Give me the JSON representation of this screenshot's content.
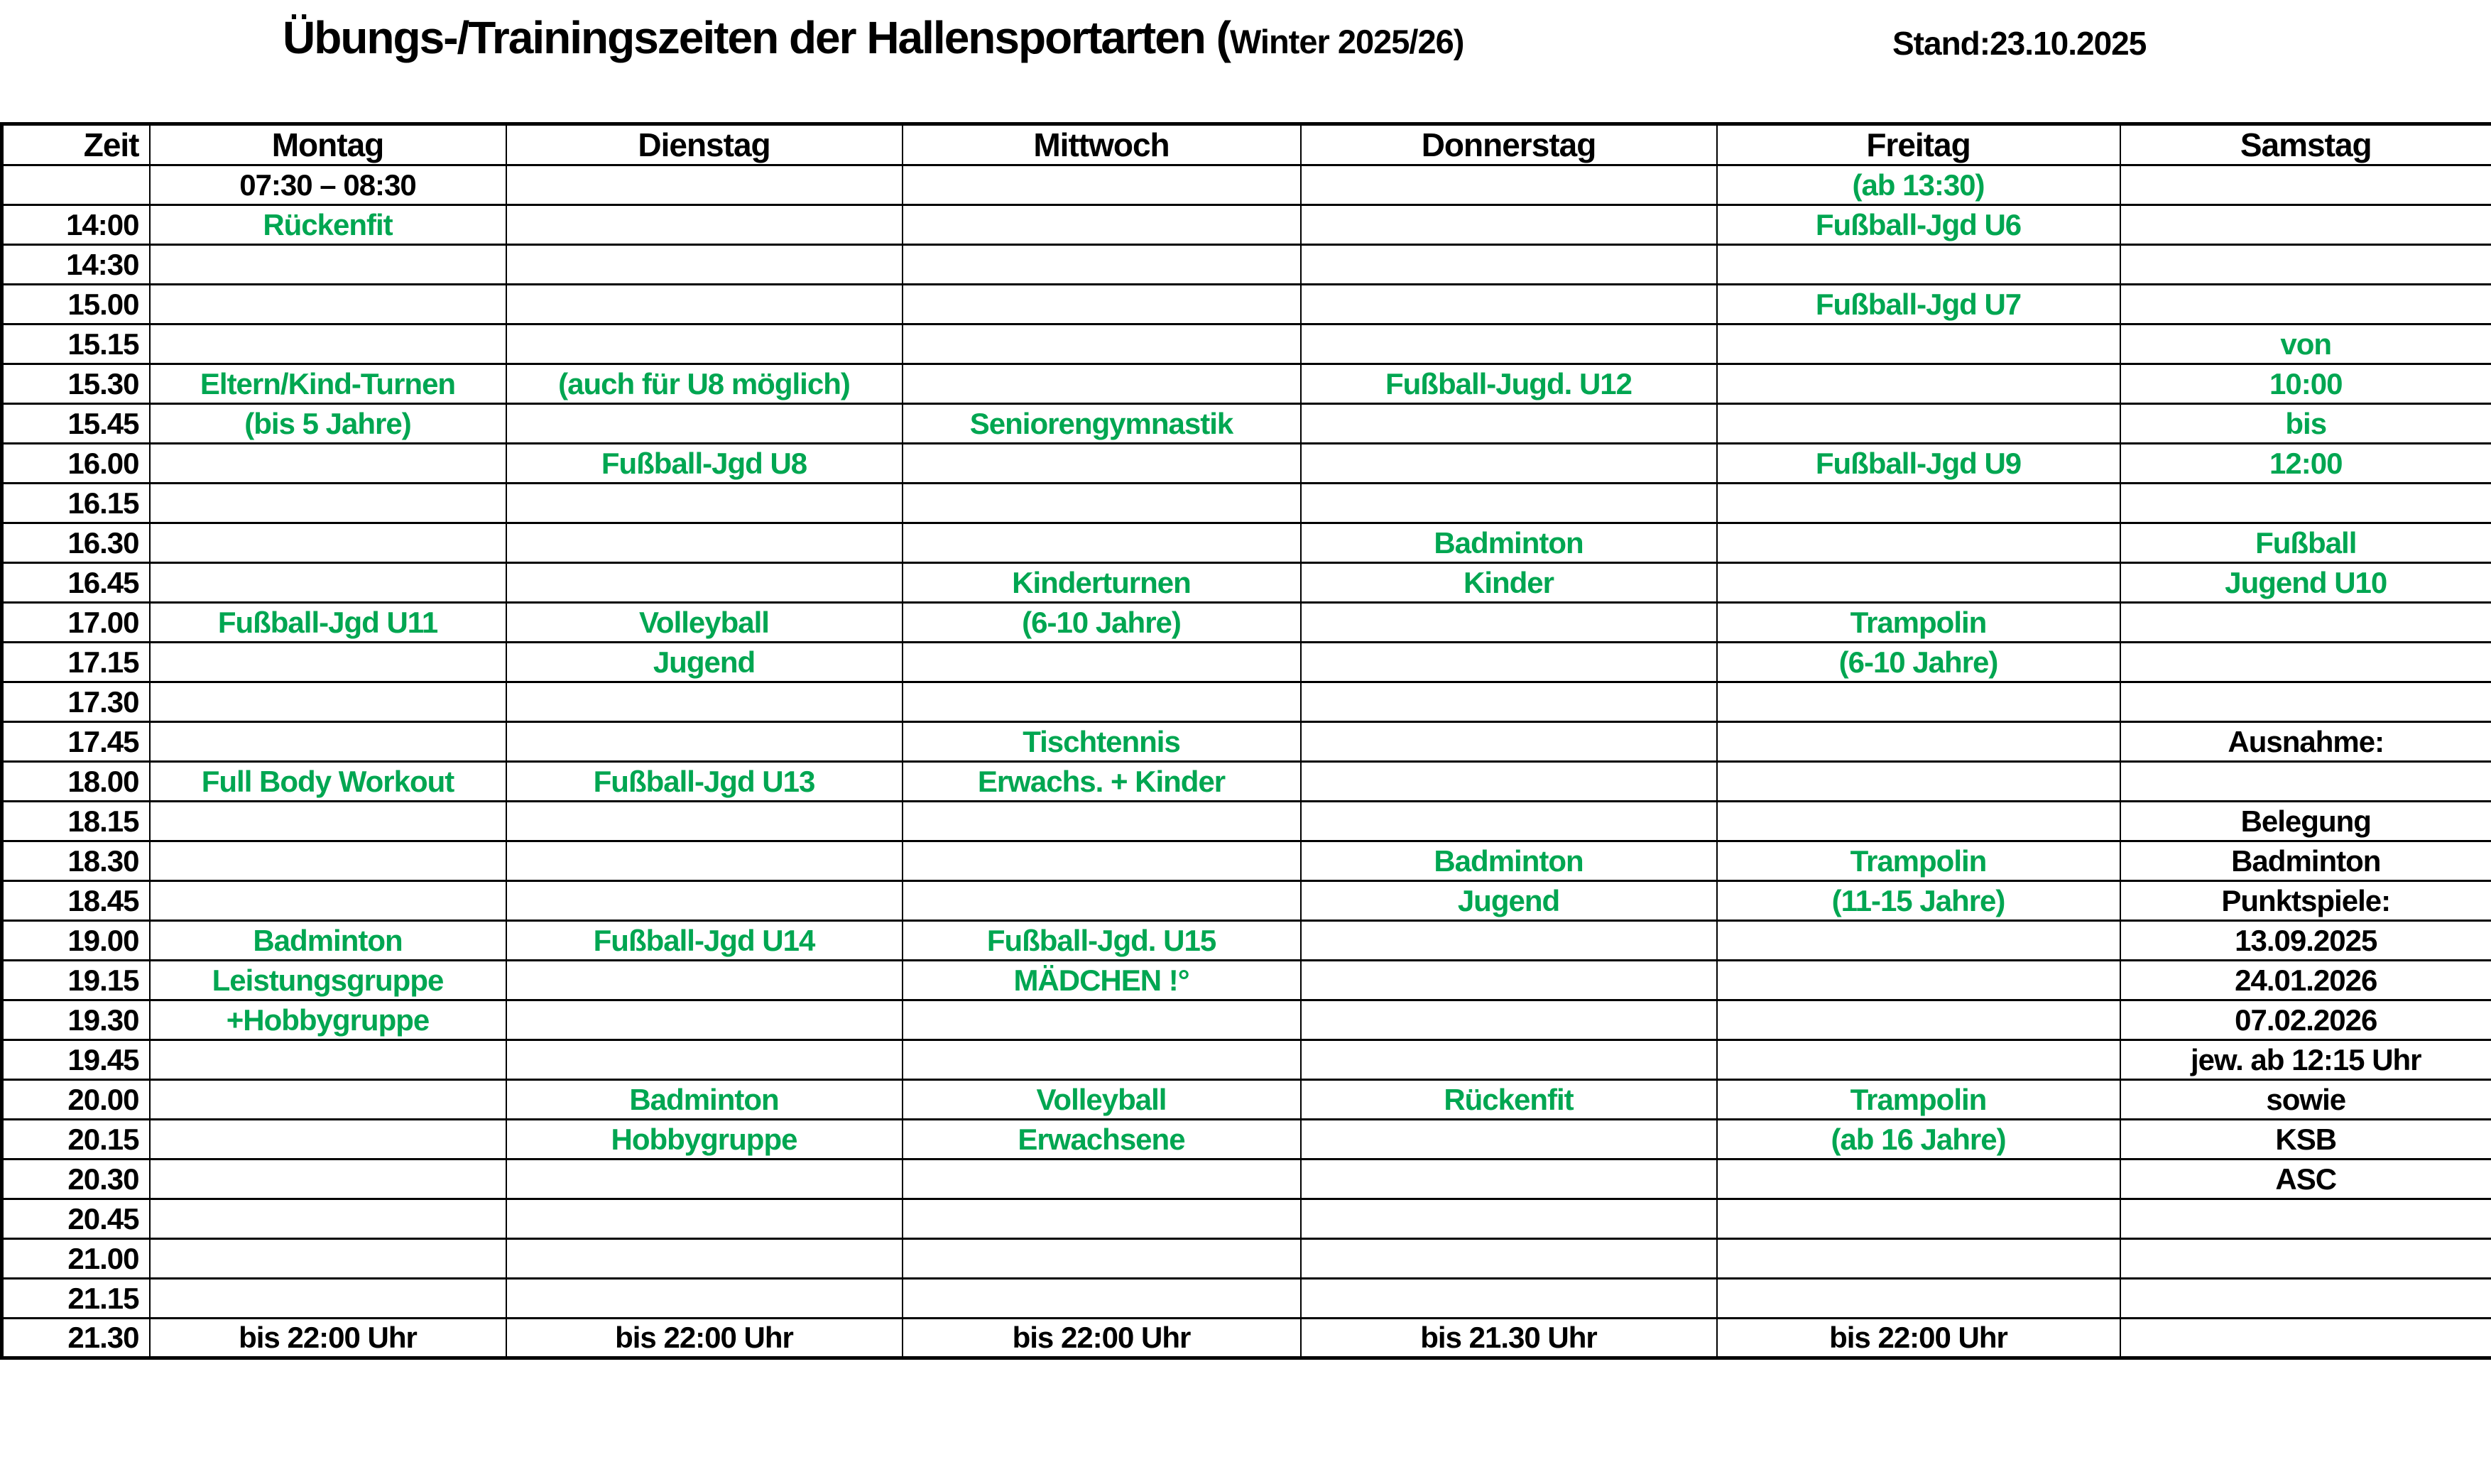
{
  "header": {
    "title_main": "Übungs-/Trainingszeiten der Hallensportarten (",
    "title_season": "Winter 2025/26)",
    "stand": "Stand:23.10.2025"
  },
  "colors": {
    "green": "#00A651",
    "black": "#000000"
  },
  "table": {
    "columns": [
      "Zeit",
      "Montag",
      "Dienstag",
      "Mittwoch",
      "Donnerstag",
      "Freitag",
      "Samstag"
    ],
    "rows": [
      {
        "time": "",
        "cells": [
          {
            "t": "07:30 – 08:30",
            "c": "black"
          },
          "",
          "",
          "",
          {
            "t": "(ab 13:30)",
            "c": "green"
          },
          ""
        ]
      },
      {
        "time": "14:00",
        "cells": [
          {
            "t": "Rückenfit",
            "c": "green"
          },
          "",
          "",
          "",
          {
            "t": "Fußball-Jgd U6",
            "c": "green"
          },
          ""
        ]
      },
      {
        "time": "14:30",
        "cells": [
          "",
          "",
          "",
          "",
          "",
          ""
        ]
      },
      {
        "time": "15.00",
        "cells": [
          "",
          "",
          "",
          "",
          {
            "t": "Fußball-Jgd U7",
            "c": "green"
          },
          ""
        ]
      },
      {
        "time": "15.15",
        "cells": [
          "",
          "",
          "",
          "",
          "",
          {
            "t": "von",
            "c": "green"
          }
        ]
      },
      {
        "time": "15.30",
        "cells": [
          {
            "t": "Eltern/Kind-Turnen",
            "c": "green"
          },
          {
            "t": "(auch für U8 möglich)",
            "c": "green"
          },
          "",
          {
            "t": "Fußball-Jugd. U12",
            "c": "green"
          },
          "",
          {
            "t": "10:00",
            "c": "green"
          }
        ]
      },
      {
        "time": "15.45",
        "cells": [
          {
            "t": "(bis 5 Jahre)",
            "c": "green"
          },
          "",
          {
            "t": "Seniorengymnastik",
            "c": "green"
          },
          "",
          "",
          {
            "t": "bis",
            "c": "green"
          }
        ]
      },
      {
        "time": "16.00",
        "cells": [
          "",
          {
            "t": "Fußball-Jgd U8",
            "c": "green"
          },
          "",
          "",
          {
            "t": "Fußball-Jgd U9",
            "c": "green"
          },
          {
            "t": "12:00",
            "c": "green"
          }
        ]
      },
      {
        "time": "16.15",
        "cells": [
          "",
          "",
          "",
          "",
          "",
          ""
        ]
      },
      {
        "time": "16.30",
        "cells": [
          "",
          "",
          "",
          {
            "t": "Badminton",
            "c": "green"
          },
          "",
          {
            "t": "Fußball",
            "c": "green"
          }
        ]
      },
      {
        "time": "16.45",
        "cells": [
          "",
          "",
          {
            "t": "Kinderturnen",
            "c": "green"
          },
          {
            "t": "Kinder",
            "c": "green"
          },
          "",
          {
            "t": "Jugend U10",
            "c": "green"
          }
        ]
      },
      {
        "time": "17.00",
        "cells": [
          {
            "t": "Fußball-Jgd U11",
            "c": "green"
          },
          {
            "t": "Volleyball",
            "c": "green"
          },
          {
            "t": "(6-10 Jahre)",
            "c": "green"
          },
          "",
          {
            "t": "Trampolin",
            "c": "green"
          },
          ""
        ]
      },
      {
        "time": "17.15",
        "cells": [
          "",
          {
            "t": "Jugend",
            "c": "green"
          },
          "",
          "",
          {
            "t": "(6-10 Jahre)",
            "c": "green"
          },
          ""
        ]
      },
      {
        "time": "17.30",
        "cells": [
          "",
          "",
          "",
          "",
          "",
          ""
        ]
      },
      {
        "time": "17.45",
        "cells": [
          "",
          "",
          {
            "t": "Tischtennis",
            "c": "green"
          },
          "",
          "",
          {
            "t": "Ausnahme:",
            "c": "black"
          }
        ]
      },
      {
        "time": "18.00",
        "cells": [
          {
            "t": "Full Body Workout",
            "c": "green"
          },
          {
            "t": "Fußball-Jgd U13",
            "c": "green"
          },
          {
            "t": "Erwachs. + Kinder",
            "c": "green"
          },
          "",
          "",
          ""
        ]
      },
      {
        "time": "18.15",
        "cells": [
          "",
          "",
          "",
          "",
          "",
          {
            "t": "Belegung",
            "c": "black"
          }
        ]
      },
      {
        "time": "18.30",
        "cells": [
          "",
          "",
          "",
          {
            "t": "Badminton",
            "c": "green"
          },
          {
            "t": "Trampolin",
            "c": "green"
          },
          {
            "t": "Badminton",
            "c": "black"
          }
        ]
      },
      {
        "time": "18.45",
        "cells": [
          "",
          "",
          "",
          {
            "t": "Jugend",
            "c": "green"
          },
          {
            "t": "(11-15 Jahre)",
            "c": "green"
          },
          {
            "t": "Punktspiele:",
            "c": "black"
          }
        ]
      },
      {
        "time": "19.00",
        "cells": [
          {
            "t": "Badminton",
            "c": "green"
          },
          {
            "t": "Fußball-Jgd U14",
            "c": "green"
          },
          {
            "t": "Fußball-Jgd. U15",
            "c": "green"
          },
          "",
          "",
          {
            "t": "13.09.2025",
            "c": "black"
          }
        ]
      },
      {
        "time": "19.15",
        "cells": [
          {
            "t": "Leistungsgruppe",
            "c": "green"
          },
          "",
          {
            "t": "MÄDCHEN !°",
            "c": "green"
          },
          "",
          "",
          {
            "t": "24.01.2026",
            "c": "black"
          }
        ]
      },
      {
        "time": "19.30",
        "cells": [
          {
            "t": "+Hobbygruppe",
            "c": "green"
          },
          "",
          "",
          "",
          "",
          {
            "t": "07.02.2026",
            "c": "black"
          }
        ]
      },
      {
        "time": "19.45",
        "cells": [
          "",
          "",
          "",
          "",
          "",
          {
            "t": "jew. ab 12:15 Uhr",
            "c": "black"
          }
        ]
      },
      {
        "time": "20.00",
        "cells": [
          "",
          {
            "t": "Badminton",
            "c": "green"
          },
          {
            "t": "Volleyball",
            "c": "green"
          },
          {
            "t": "Rückenfit",
            "c": "green"
          },
          {
            "t": "Trampolin",
            "c": "green"
          },
          {
            "t": "sowie",
            "c": "black"
          }
        ]
      },
      {
        "time": "20.15",
        "cells": [
          "",
          {
            "t": "Hobbygruppe",
            "c": "green"
          },
          {
            "t": "Erwachsene",
            "c": "green"
          },
          "",
          {
            "t": "(ab 16 Jahre)",
            "c": "green"
          },
          {
            "t": "KSB",
            "c": "black"
          }
        ]
      },
      {
        "time": "20.30",
        "cells": [
          "",
          "",
          "",
          "",
          "",
          {
            "t": "ASC",
            "c": "black"
          }
        ]
      },
      {
        "time": "20.45",
        "cells": [
          "",
          "",
          "",
          "",
          "",
          ""
        ]
      },
      {
        "time": "21.00",
        "cells": [
          "",
          "",
          "",
          "",
          "",
          ""
        ]
      },
      {
        "time": "21.15",
        "cells": [
          "",
          "",
          "",
          "",
          "",
          ""
        ]
      },
      {
        "time": "21.30",
        "cells": [
          {
            "t": "bis 22:00 Uhr",
            "c": "black"
          },
          {
            "t": "bis 22:00 Uhr",
            "c": "black"
          },
          {
            "t": "bis 22:00 Uhr",
            "c": "black"
          },
          {
            "t": "bis 21.30 Uhr",
            "c": "black"
          },
          {
            "t": "bis 22:00 Uhr",
            "c": "black"
          },
          ""
        ]
      }
    ]
  }
}
